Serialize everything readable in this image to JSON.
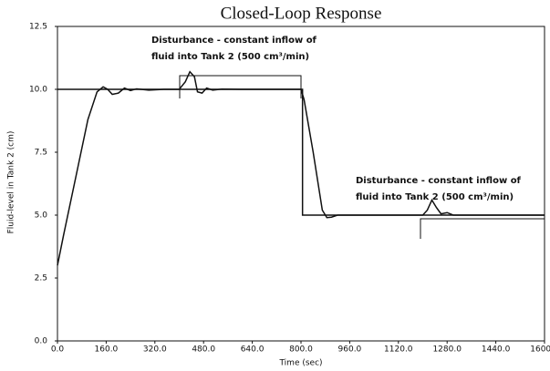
{
  "chart_data": {
    "type": "line",
    "title": "Closed-Loop Response",
    "x_label": "Time (sec)",
    "y_label": "Fluid-level in Tank 2 (cm)",
    "xlim": [
      0,
      1600
    ],
    "ylim": [
      0,
      12.5
    ],
    "xticks": [
      {
        "value": 0,
        "label": "0.0"
      },
      {
        "value": 160,
        "label": "160.0"
      },
      {
        "value": 320,
        "label": "320.0"
      },
      {
        "value": 480,
        "label": "480.0"
      },
      {
        "value": 640,
        "label": "640.0"
      },
      {
        "value": 800,
        "label": "800.0"
      },
      {
        "value": 960,
        "label": "960.0"
      },
      {
        "value": 1120,
        "label": "1120.0"
      },
      {
        "value": 1280,
        "label": "1280.0"
      },
      {
        "value": 1440,
        "label": "1440.0"
      },
      {
        "value": 1600,
        "label": "1600.0"
      }
    ],
    "yticks": [
      {
        "value": 0,
        "label": "0.0"
      },
      2.5,
      {
        "value": 5,
        "label": "5.0"
      },
      7.5,
      {
        "value": 10,
        "label": "10.0"
      },
      12.5
    ],
    "annotations": [
      {
        "line1": "Disturbance - constant inflow of",
        "line2": "fluid into Tank 2 (500 cm³/min)"
      },
      {
        "line1": "Disturbance - constant inflow of",
        "line2": "fluid into Tank 2 (500 cm³/min)"
      }
    ],
    "series": [
      {
        "color": "#111111",
        "x": [
          0,
          805,
          805,
          1600
        ],
        "values": [
          10,
          10,
          5,
          5
        ]
      },
      {
        "color": "#111111",
        "x": [
          0,
          20,
          60,
          100,
          130,
          150,
          165,
          180,
          200,
          220,
          240,
          260,
          300,
          350,
          400,
          420,
          435,
          450,
          460,
          475,
          490,
          510,
          540,
          600,
          800,
          810,
          840,
          870,
          885,
          900,
          920,
          1000,
          1200,
          1215,
          1230,
          1245,
          1260,
          1280,
          1300,
          1600
        ],
        "values": [
          3,
          4.2,
          6.5,
          8.8,
          9.9,
          10.1,
          10,
          9.8,
          9.85,
          10.05,
          9.95,
          10.02,
          9.97,
          10,
          10,
          10.3,
          10.7,
          10.5,
          9.9,
          9.85,
          10.05,
          9.97,
          10.01,
          10,
          10,
          9.6,
          7.5,
          5.2,
          4.9,
          4.92,
          5,
          5,
          5,
          5.2,
          5.6,
          5.3,
          5.05,
          5.1,
          5,
          5
        ]
      }
    ]
  }
}
